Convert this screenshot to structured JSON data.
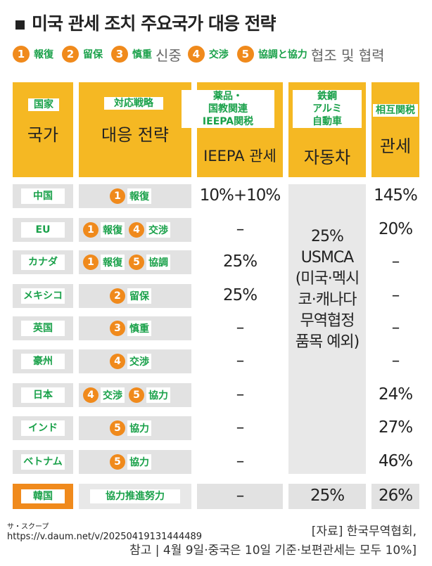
{
  "title": "미국 관세 조치 주요국가 대응 전략",
  "legend": [
    {
      "n": "1",
      "tag": "報復"
    },
    {
      "n": "2",
      "tag": "留保"
    },
    {
      "n": "3",
      "tag": "慎重",
      "ko": "신중"
    },
    {
      "n": "4",
      "tag": "交渉"
    },
    {
      "n": "5",
      "tag": "協調と協力",
      "ko": "협조 및 협력"
    }
  ],
  "header": {
    "country": {
      "tag": "国家",
      "ko": "국가"
    },
    "strategy": {
      "tag": "対応戦略",
      "ko": "대응 전략"
    },
    "pharma": {
      "tag": "薬品・\n国教関連\nIEEPA関税",
      "ko": "IEEPA 관세"
    },
    "steel": {
      "tag": "鉄鋼\nアルミ\n自動車",
      "ko": "자동차"
    },
    "reciprocal": {
      "tag": "相互関税",
      "ko": "관세"
    }
  },
  "rows": [
    {
      "country": "中国",
      "resp": [
        {
          "n": "1",
          "tag": "報復"
        }
      ],
      "ieepa": "10%+10%",
      "recip": "145%"
    },
    {
      "country": "EU",
      "resp": [
        {
          "n": "1",
          "tag": "報復"
        },
        {
          "n": "4",
          "tag": "交渉"
        }
      ],
      "ieepa": "–",
      "recip": "20%"
    },
    {
      "country": "カナダ",
      "resp": [
        {
          "n": "1",
          "tag": "報復"
        },
        {
          "n": "5",
          "tag": "協調"
        }
      ],
      "ieepa": "25%",
      "recip": "–"
    },
    {
      "country": "メキシコ",
      "resp": [
        {
          "n": "2",
          "tag": "留保"
        }
      ],
      "ieepa": "25%",
      "recip": "–"
    },
    {
      "country": "英国",
      "resp": [
        {
          "n": "3",
          "tag": "慎重"
        }
      ],
      "ieepa": "–",
      "recip": "–"
    },
    {
      "country": "豪州",
      "resp": [
        {
          "n": "4",
          "tag": "交渉"
        }
      ],
      "ieepa": "–",
      "recip": "–"
    },
    {
      "country": "日本",
      "resp": [
        {
          "n": "4",
          "tag": "交渉"
        },
        {
          "n": "5",
          "tag": "協力"
        }
      ],
      "ieepa": "–",
      "recip": "24%"
    },
    {
      "country": "インド",
      "resp": [
        {
          "n": "5",
          "tag": "協力"
        }
      ],
      "ieepa": "–",
      "recip": "27%"
    },
    {
      "country": "ベトナム",
      "resp": [
        {
          "n": "5",
          "tag": "協力"
        }
      ],
      "ieepa": "–",
      "recip": "46%"
    }
  ],
  "usmca": [
    "25%",
    "USMCA",
    "(미국·멕시",
    "코·캐나다",
    "무역협정",
    "품목 예외)"
  ],
  "korea": {
    "country": "韓国",
    "resp": "協力推進努力",
    "ieepa": "–",
    "steel": "25%",
    "recip": "26%"
  },
  "footer": {
    "source_label": "サ・スクープ",
    "url": "https://v.daum.net/v/20250419131444489",
    "credit1": "[자료] 한국무역협회,",
    "credit2": "참고 | 4월 9일·중국은 10일 기준·보편관세는 모두 10%]"
  },
  "colors": {
    "accent": "#f5b823",
    "circle": "#f08a1c",
    "label_green": "#1aa14a",
    "cell_gray": "#e2e2e2"
  }
}
